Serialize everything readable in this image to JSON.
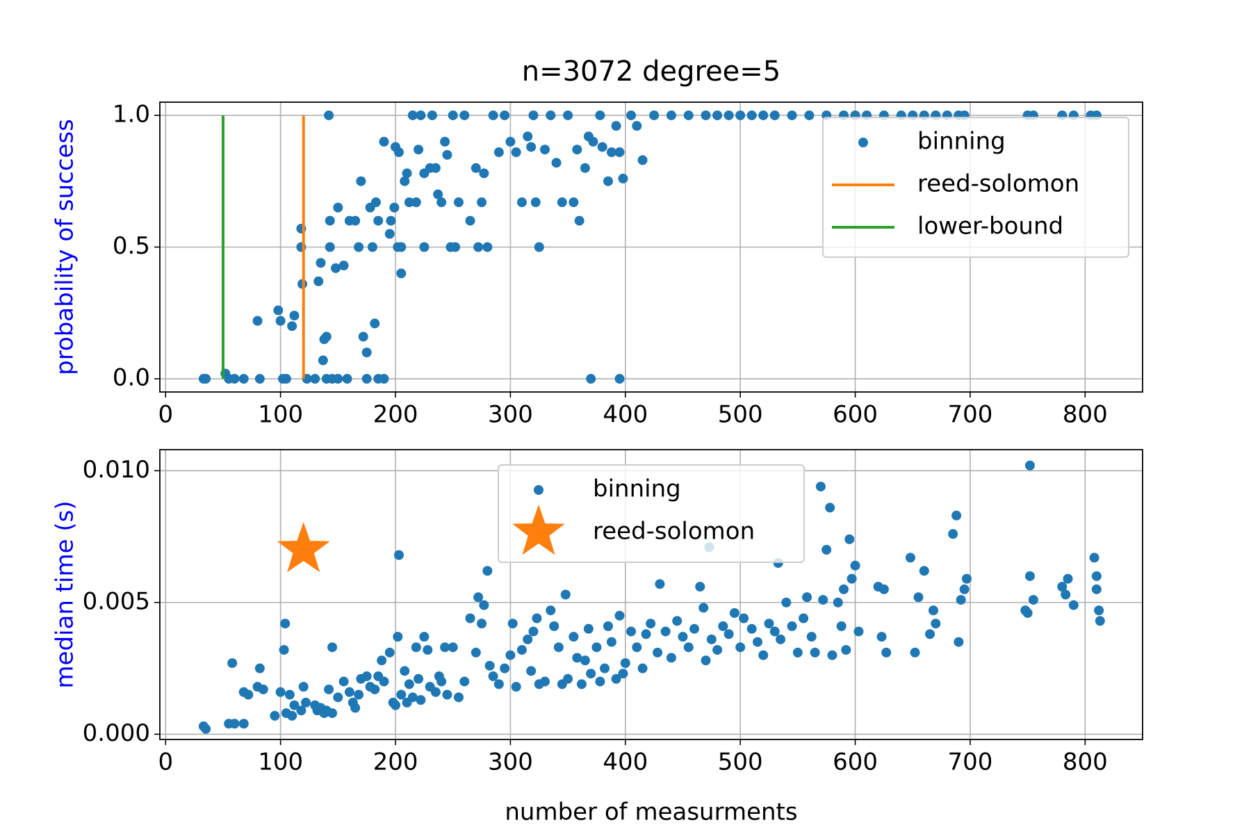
{
  "chart_data": [
    {
      "type": "scatter",
      "title": "n=3072 degree=5",
      "ylabel": "probability of success",
      "ylabel_color": "#0000ff",
      "xlim": [
        -5,
        850
      ],
      "ylim": [
        -0.05,
        1.05
      ],
      "xticks": [
        0,
        100,
        200,
        300,
        400,
        500,
        600,
        700,
        800
      ],
      "yticks": [
        {
          "value": 0,
          "label": "0.0"
        },
        0.5,
        {
          "value": 1,
          "label": "1.0"
        }
      ],
      "grid": true,
      "legend": "upper right",
      "series": [
        {
          "name": "binning",
          "color": "#1f77b4",
          "marker": "dot",
          "x": [
            33,
            35,
            52,
            55,
            60,
            68,
            80,
            82,
            98,
            100,
            102,
            105,
            110,
            112,
            118,
            118,
            119,
            123,
            130,
            133,
            135,
            137,
            138,
            140,
            140,
            142,
            143,
            143,
            145,
            148,
            150,
            150,
            155,
            158,
            160,
            165,
            168,
            170,
            172,
            175,
            175,
            178,
            180,
            182,
            183,
            185,
            185,
            190,
            190,
            195,
            196,
            199,
            200,
            202,
            203,
            205,
            205,
            208,
            210,
            212,
            215,
            218,
            220,
            222,
            225,
            225,
            230,
            232,
            235,
            237,
            240,
            243,
            245,
            248,
            250,
            252,
            255,
            260,
            265,
            270,
            272,
            275,
            277,
            280,
            285,
            290,
            295,
            300,
            305,
            310,
            315,
            318,
            320,
            322,
            325,
            330,
            335,
            340,
            345,
            350,
            355,
            358,
            360,
            365,
            368,
            370,
            372,
            378,
            380,
            385,
            388,
            392,
            395,
            395,
            398,
            405,
            410,
            415,
            425,
            440,
            455,
            470,
            480,
            490,
            500,
            510,
            520,
            530,
            545,
            560,
            575,
            590,
            600,
            610,
            625,
            640,
            650,
            660,
            670,
            680,
            690,
            695,
            750,
            755,
            780,
            790,
            805,
            810
          ],
          "values": [
            0,
            0,
            0.02,
            0,
            0,
            0,
            0.22,
            0,
            0.26,
            0.22,
            0,
            0,
            0.2,
            0.24,
            0.57,
            0.5,
            0.36,
            0,
            0,
            0.37,
            0.44,
            0.07,
            0.15,
            0.16,
            0,
            1,
            0.6,
            0.5,
            0,
            0.42,
            0,
            0.65,
            0.43,
            0,
            0.6,
            0.6,
            0.5,
            0.75,
            0.16,
            0.1,
            0,
            0.65,
            0.5,
            0.21,
            0.67,
            0,
            0.6,
            0.9,
            0,
            0.55,
            0.6,
            0.65,
            0.88,
            0.5,
            0.86,
            0.4,
            0.5,
            0.75,
            0.78,
            0.67,
            1,
            0.67,
            0.87,
            1,
            0.5,
            0.78,
            0.8,
            1,
            0.8,
            0.7,
            0.67,
            0.9,
            0.85,
            0.5,
            1,
            0.5,
            0.67,
            1,
            0.6,
            0.8,
            0.5,
            0.67,
            0.78,
            0.5,
            1,
            0.86,
            1,
            0.9,
            0.86,
            0.67,
            0.92,
            0.88,
            1,
            0.67,
            0.5,
            0.87,
            1,
            0.82,
            0.67,
            1,
            0.67,
            0.87,
            0.6,
            0.8,
            0.92,
            0,
            0.9,
            1,
            0.88,
            0.75,
            0.86,
            0.96,
            0.86,
            0,
            0.76,
            1,
            0.96,
            0.83,
            1,
            1,
            1,
            1,
            1,
            1,
            1,
            1,
            1,
            1,
            1,
            1,
            1,
            1,
            1,
            1,
            1,
            1,
            1,
            1,
            1,
            1,
            1,
            1,
            1,
            1,
            1,
            1,
            1,
            1
          ]
        },
        {
          "name": "reed-solomon",
          "color": "#ff7f0e",
          "marker": "line",
          "x": [
            120,
            120
          ],
          "values": [
            0,
            1
          ]
        },
        {
          "name": "lower-bound",
          "color": "#2ca02c",
          "marker": "line",
          "x": [
            50,
            50
          ],
          "values": [
            0,
            1
          ]
        }
      ]
    },
    {
      "type": "scatter",
      "xlabel": "number of measurments",
      "ylabel": "median time (s)",
      "ylabel_color": "#0000ff",
      "xlim": [
        -5,
        850
      ],
      "ylim": [
        -0.0002,
        0.0108
      ],
      "xticks": [
        0,
        100,
        200,
        300,
        400,
        500,
        600,
        700,
        800
      ],
      "yticks": [
        {
          "value": 0,
          "label": "0.000"
        },
        0.005,
        {
          "value": 0.01,
          "label": "0.010"
        }
      ],
      "grid": true,
      "legend": "upper center",
      "series": [
        {
          "name": "binning",
          "color": "#1f77b4",
          "marker": "dot",
          "x": [
            33,
            35,
            55,
            58,
            60,
            68,
            68,
            72,
            80,
            82,
            85,
            95,
            100,
            103,
            104,
            105,
            108,
            110,
            112,
            118,
            120,
            122,
            130,
            132,
            135,
            138,
            140,
            142,
            145,
            145,
            150,
            155,
            160,
            163,
            165,
            168,
            170,
            175,
            178,
            182,
            185,
            188,
            190,
            195,
            198,
            200,
            202,
            203,
            205,
            208,
            210,
            212,
            215,
            218,
            220,
            222,
            225,
            228,
            230,
            235,
            238,
            240,
            243,
            245,
            250,
            255,
            260,
            265,
            270,
            272,
            275,
            277,
            280,
            282,
            285,
            290,
            295,
            300,
            302,
            305,
            310,
            315,
            318,
            320,
            323,
            325,
            330,
            335,
            338,
            342,
            345,
            348,
            350,
            355,
            358,
            362,
            365,
            368,
            370,
            375,
            378,
            382,
            385,
            388,
            392,
            395,
            398,
            400,
            405,
            410,
            415,
            418,
            422,
            428,
            430,
            435,
            440,
            445,
            450,
            455,
            460,
            465,
            468,
            470,
            473,
            475,
            480,
            485,
            490,
            495,
            500,
            503,
            510,
            515,
            520,
            525,
            530,
            533,
            535,
            540,
            545,
            550,
            555,
            558,
            562,
            565,
            570,
            572,
            575,
            578,
            580,
            585,
            588,
            590,
            592,
            595,
            597,
            600,
            603,
            620,
            623,
            625,
            627,
            648,
            652,
            655,
            660,
            665,
            668,
            670,
            685,
            688,
            690,
            692,
            695,
            697,
            748,
            750,
            752,
            752,
            755,
            780,
            783,
            785,
            790,
            808,
            810,
            812,
            813,
            810
          ],
          "values": [
            0.0003,
            0.0002,
            0.0004,
            0.0027,
            0.0004,
            0.0004,
            0.0016,
            0.0015,
            0.0018,
            0.0025,
            0.0017,
            0.0007,
            0.0016,
            0.0032,
            0.0042,
            0.0008,
            0.0015,
            0.0007,
            0.0011,
            0.0009,
            0.0018,
            0.0012,
            0.0011,
            0.0009,
            0.001,
            0.0008,
            0.0009,
            0.0017,
            0.0033,
            0.0008,
            0.0014,
            0.002,
            0.0016,
            0.0012,
            0.001,
            0.0015,
            0.0021,
            0.0022,
            0.0018,
            0.0017,
            0.0022,
            0.0028,
            0.002,
            0.0031,
            0.0012,
            0.0011,
            0.0037,
            0.0068,
            0.0015,
            0.0024,
            0.0012,
            0.0019,
            0.0014,
            0.0033,
            0.0021,
            0.0013,
            0.0037,
            0.0032,
            0.0018,
            0.0016,
            0.0022,
            0.002,
            0.0033,
            0.0015,
            0.0033,
            0.0014,
            0.002,
            0.0044,
            0.0031,
            0.0052,
            0.0042,
            0.0049,
            0.0062,
            0.0026,
            0.0022,
            0.0019,
            0.0025,
            0.003,
            0.0042,
            0.0018,
            0.0032,
            0.0036,
            0.0024,
            0.0039,
            0.0044,
            0.0019,
            0.002,
            0.0047,
            0.0041,
            0.0033,
            0.0019,
            0.0053,
            0.0021,
            0.0037,
            0.0029,
            0.0019,
            0.0028,
            0.004,
            0.0023,
            0.0033,
            0.002,
            0.0025,
            0.0041,
            0.0035,
            0.0021,
            0.0045,
            0.0023,
            0.0027,
            0.0039,
            0.0033,
            0.0025,
            0.0038,
            0.0042,
            0.0031,
            0.0057,
            0.0039,
            0.0029,
            0.0043,
            0.0037,
            0.0033,
            0.004,
            0.0056,
            0.0048,
            0.0028,
            0.0071,
            0.0036,
            0.0032,
            0.0041,
            0.0038,
            0.0046,
            0.0033,
            0.0044,
            0.004,
            0.0035,
            0.003,
            0.0042,
            0.0039,
            0.0065,
            0.0036,
            0.005,
            0.0041,
            0.0031,
            0.0044,
            0.0052,
            0.0037,
            0.0031,
            0.0094,
            0.0051,
            0.007,
            0.0086,
            0.003,
            0.005,
            0.0041,
            0.0055,
            0.0032,
            0.0074,
            0.0059,
            0.0064,
            0.0039,
            0.0056,
            0.0037,
            0.0055,
            0.0031,
            0.0067,
            0.0031,
            0.0052,
            0.0062,
            0.0038,
            0.0047,
            0.0042,
            0.0076,
            0.0083,
            0.0035,
            0.0051,
            0.0055,
            0.0059,
            0.0047,
            0.0046,
            0.006,
            0.0102,
            0.0051,
            0.0056,
            0.0053,
            0.0059,
            0.0049,
            0.0067,
            0.0055,
            0.0047,
            0.0043,
            0.006
          ]
        },
        {
          "name": "reed-solomon",
          "color": "#ff7f0e",
          "marker": "star",
          "x": [
            120
          ],
          "values": [
            0.007
          ]
        }
      ]
    }
  ]
}
